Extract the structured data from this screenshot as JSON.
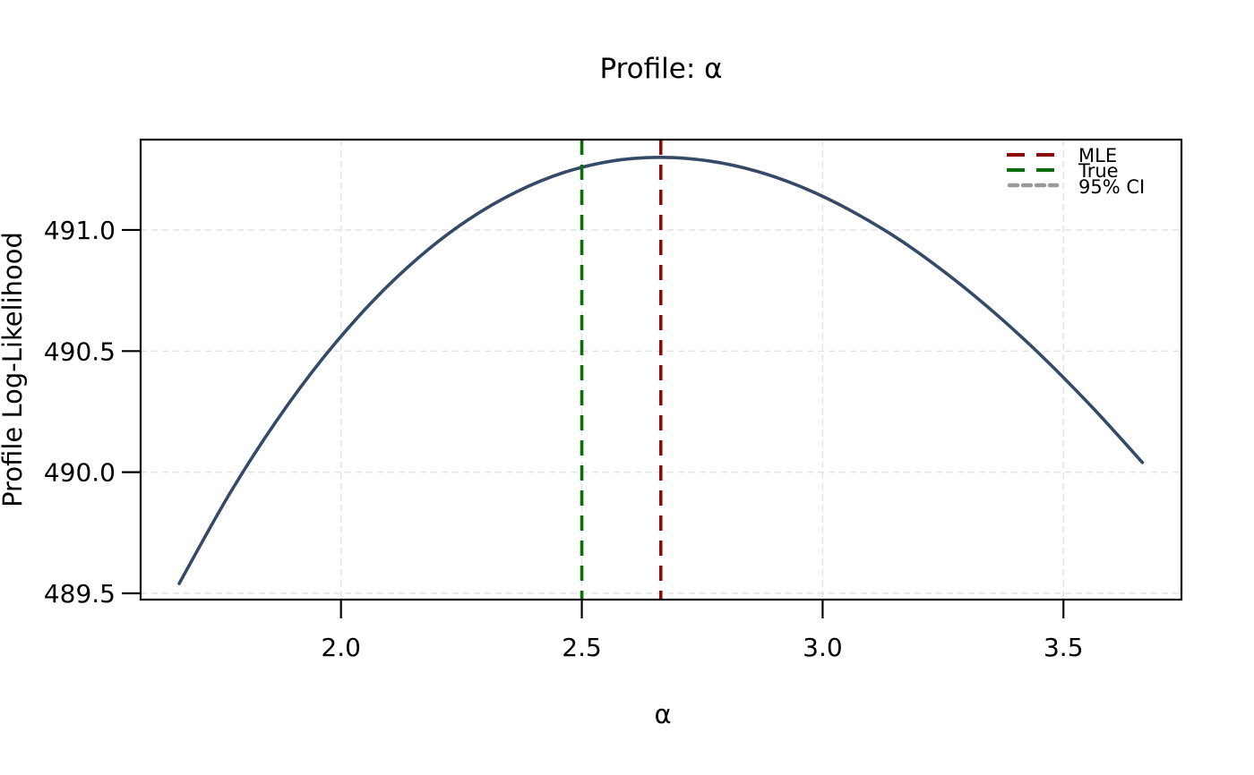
{
  "title": "Profile: α",
  "axes": {
    "xlabel": "α",
    "ylabel": "Profile Log-Likelihood",
    "x_ticks": [
      2.0,
      2.5,
      3.0,
      3.5
    ],
    "x_tick_labels": [
      "2.0",
      "2.5",
      "3.0",
      "3.5"
    ],
    "y_ticks": [
      489.5,
      490.0,
      490.5,
      491.0
    ],
    "y_tick_labels": [
      "489.5",
      "490.0",
      "490.5",
      "491.0"
    ],
    "xlim": [
      1.584,
      3.745
    ],
    "ylim": [
      489.474,
      491.373
    ],
    "grid": "dotted"
  },
  "legend": {
    "position": "top-right",
    "entries": [
      {
        "label": "MLE",
        "color": "#8B0A0A",
        "style": "dashed"
      },
      {
        "label": "True",
        "color": "#0B6E0B",
        "style": "dashed"
      },
      {
        "label": "95% CI",
        "color": "#999999",
        "style": "dotted"
      }
    ]
  },
  "colors": {
    "curve": "#344A66",
    "mle_line": "#8B0A0A",
    "true_line": "#0B6E0B",
    "ci_line": "#999999",
    "grid": "#e1e1e1",
    "text": "#000000",
    "background": "#FFFFFF"
  },
  "chart_data": {
    "type": "line",
    "title": "Profile: α",
    "xlabel": "α",
    "ylabel": "Profile Log-Likelihood",
    "xlim": [
      1.584,
      3.745
    ],
    "ylim": [
      489.474,
      491.373
    ],
    "grid": true,
    "legend_position": "top-right",
    "series": [
      {
        "name": "profile-log-likelihood",
        "color": "#344A66",
        "x": [
          1.664,
          1.764,
          1.864,
          1.964,
          2.064,
          2.164,
          2.264,
          2.364,
          2.464,
          2.564,
          2.664,
          2.764,
          2.864,
          2.964,
          3.064,
          3.164,
          3.264,
          3.364,
          3.464,
          3.564,
          3.664
        ],
        "y": [
          489.54,
          489.895,
          490.206,
          490.474,
          490.702,
          490.891,
          491.042,
          491.157,
          491.238,
          491.285,
          491.3,
          491.285,
          491.242,
          491.171,
          491.074,
          490.954,
          490.81,
          490.646,
          490.462,
          490.259,
          490.04
        ]
      }
    ],
    "vlines": [
      {
        "name": "MLE",
        "x": 2.664,
        "color": "#8B0A0A",
        "style": "dashed"
      },
      {
        "name": "True",
        "x": 2.5,
        "color": "#0B6E0B",
        "style": "dashed"
      }
    ],
    "peak": {
      "x": 2.664,
      "y": 491.3
    }
  }
}
